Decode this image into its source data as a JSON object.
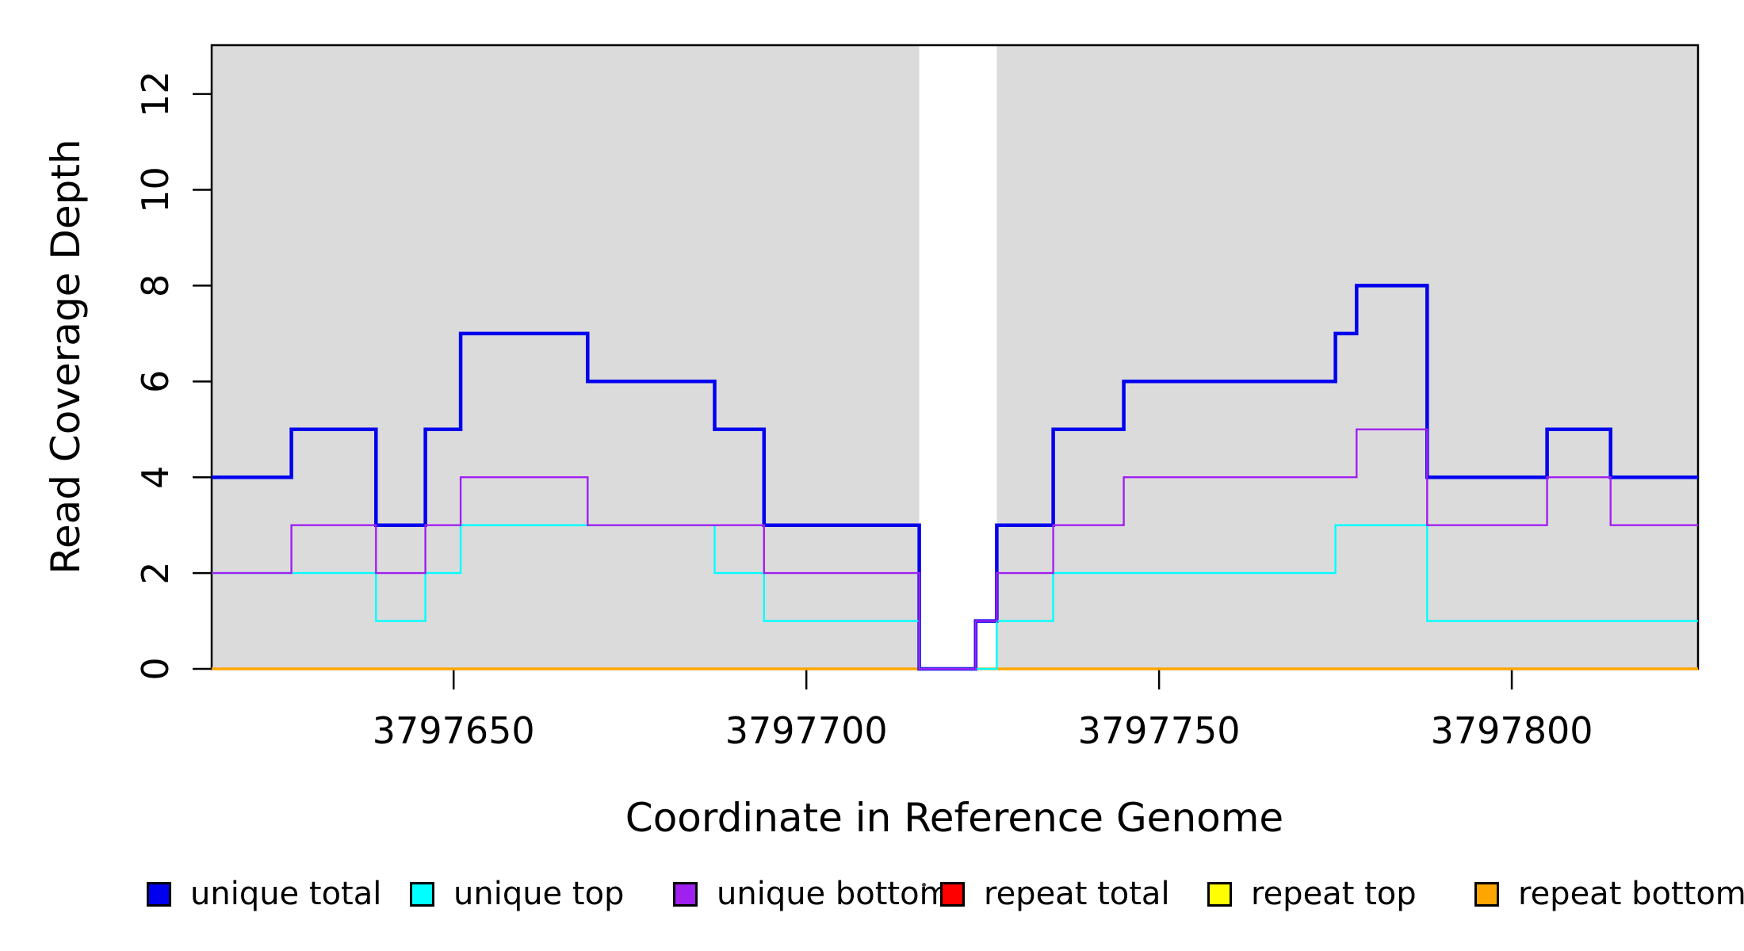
{
  "y_axis": {
    "title": "Read Coverage Depth",
    "tick_labels": [
      "0",
      "2",
      "4",
      "6",
      "8",
      "10",
      "12"
    ]
  },
  "x_axis": {
    "title": "Coordinate in Reference Genome",
    "tick_labels": [
      "3797650",
      "3797700",
      "3797750",
      "3797800"
    ]
  },
  "legend": {
    "items": [
      {
        "label": "unique total",
        "color": "#0000EE"
      },
      {
        "label": "unique top",
        "color": "#00FFFF"
      },
      {
        "label": "unique bottom",
        "color": "#A020F0"
      },
      {
        "label": "repeat total",
        "color": "#FF0000"
      },
      {
        "label": "repeat top",
        "color": "#FFFF00"
      },
      {
        "label": "repeat bottom",
        "color": "#FFA500"
      }
    ]
  },
  "chart_data": {
    "type": "line",
    "step_style": "post",
    "xlabel": "Coordinate in Reference Genome",
    "ylabel": "Read Coverage Depth",
    "xlim": [
      3797615.7,
      3797826.4
    ],
    "ylim": [
      0,
      13.02
    ],
    "x_ticks": [
      3797650,
      3797700,
      3797750,
      3797800
    ],
    "y_ticks": [
      0,
      2,
      4,
      6,
      8,
      10,
      12
    ],
    "grid": false,
    "legend_position": "bottom",
    "border_color": "#000000",
    "highlight_regions": [
      {
        "x0": 3797615.7,
        "x1": 3797716,
        "color": "#DBDBDB"
      },
      {
        "x0": 3797727,
        "x1": 3797826.4,
        "color": "#DBDBDB"
      }
    ],
    "series": [
      {
        "name": "repeat total",
        "color": "#FF0000",
        "line_width": 2.4,
        "steps": [
          [
            3797615.7,
            0
          ]
        ]
      },
      {
        "name": "repeat top",
        "color": "#FFFF00",
        "line_width": 2.4,
        "steps": [
          [
            3797615.7,
            0
          ]
        ]
      },
      {
        "name": "repeat bottom",
        "color": "#FFA500",
        "line_width": 3.5,
        "steps": [
          [
            3797615.7,
            0
          ]
        ]
      },
      {
        "name": "unique total",
        "color": "#0000EE",
        "line_width": 4.5,
        "steps": [
          [
            3797615.7,
            4
          ],
          [
            3797627,
            5
          ],
          [
            3797639,
            3
          ],
          [
            3797646,
            5
          ],
          [
            3797651,
            7
          ],
          [
            3797669,
            6
          ],
          [
            3797687,
            5
          ],
          [
            3797694,
            3
          ],
          [
            3797716,
            0
          ],
          [
            3797724,
            1
          ],
          [
            3797727,
            3
          ],
          [
            3797735,
            5
          ],
          [
            3797745,
            6
          ],
          [
            3797775,
            7
          ],
          [
            3797778,
            8
          ],
          [
            3797788,
            4
          ],
          [
            3797805,
            5
          ],
          [
            3797814,
            4
          ]
        ]
      },
      {
        "name": "unique top",
        "color": "#00FFFF",
        "line_width": 2.4,
        "steps": [
          [
            3797615.7,
            2
          ],
          [
            3797639,
            1
          ],
          [
            3797646,
            2
          ],
          [
            3797651,
            3
          ],
          [
            3797687,
            2
          ],
          [
            3797694,
            1
          ],
          [
            3797716,
            0
          ],
          [
            3797727,
            1
          ],
          [
            3797735,
            2
          ],
          [
            3797775,
            3
          ],
          [
            3797788,
            1
          ]
        ]
      },
      {
        "name": "unique bottom",
        "color": "#A020F0",
        "line_width": 2.4,
        "steps": [
          [
            3797615.7,
            2
          ],
          [
            3797627,
            3
          ],
          [
            3797639,
            2
          ],
          [
            3797646,
            3
          ],
          [
            3797651,
            4
          ],
          [
            3797669,
            3
          ],
          [
            3797694,
            2
          ],
          [
            3797716,
            0
          ],
          [
            3797724,
            1
          ],
          [
            3797727,
            2
          ],
          [
            3797735,
            3
          ],
          [
            3797745,
            4
          ],
          [
            3797778,
            5
          ],
          [
            3797788,
            3
          ],
          [
            3797805,
            4
          ],
          [
            3797814,
            3
          ]
        ]
      }
    ]
  },
  "decorations": {
    "stray_dot_x": 1163,
    "stray_dot_y": 1114
  }
}
